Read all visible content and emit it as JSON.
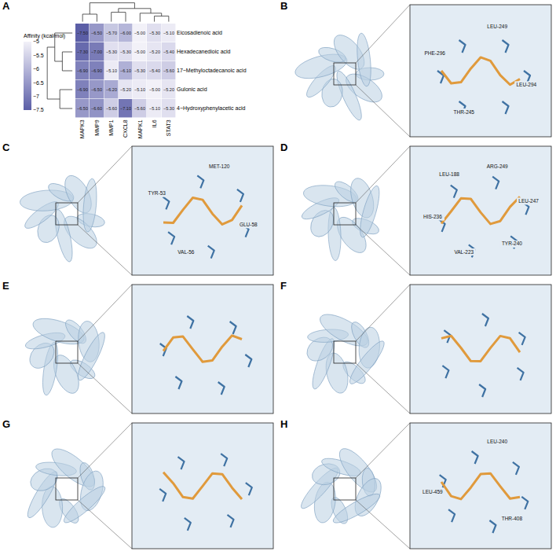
{
  "chart_data": {
    "type": "heatmap",
    "panel": "A",
    "columns": [
      "MAPK3",
      "MMP9",
      "MMP1",
      "CXCL8",
      "MAPK1",
      "IL6",
      "STAT3"
    ],
    "rows": [
      "Eicosadienoic acid",
      "Hexadecanedioic acid",
      "17−Methyloctadecanoic acid",
      "Gulonic acid",
      "4−Hydroxyphenylacetic acid"
    ],
    "values": [
      [
        -7.5,
        -6.5,
        -5.7,
        -6.0,
        -5.0,
        -5.3,
        -5.1
      ],
      [
        -7.3,
        -7.0,
        -5.3,
        -5.3,
        -5.0,
        -5.2,
        -5.4
      ],
      [
        -6.9,
        -6.9,
        -5.1,
        -6.1,
        -5.3,
        -5.4,
        -5.6
      ],
      [
        -6.9,
        -6.5,
        -6.2,
        -5.2,
        -5.1,
        -5.0,
        -5.2
      ],
      [
        -6.5,
        -6.6,
        -5.6,
        -7.1,
        -5.6,
        -5.1,
        -5.3
      ]
    ],
    "value_labels": [
      [
        "−7.50",
        "−6.50",
        "−5.70",
        "−6.00",
        "−5.00",
        "−5.30",
        "−5.10"
      ],
      [
        "−7.30",
        "−7.00",
        "−5.30",
        "−5.30",
        "−5.00",
        "−5.20",
        "−5.40"
      ],
      [
        "−6.90",
        "−6.90",
        "−5.10",
        "−6.10",
        "−5.30",
        "−5.40",
        "−5.60"
      ],
      [
        "−6.90",
        "−6.50",
        "−6.20",
        "−5.20",
        "−5.10",
        "−5.00",
        "−5.20"
      ],
      [
        "−6.50",
        "−6.60",
        "−5.60",
        "−7.10",
        "−5.60",
        "−5.10",
        "−5.30"
      ]
    ],
    "colorbar": {
      "title": "Affinity (kcal/mol)",
      "zlim": [
        -7.5,
        -5
      ],
      "zticks": [
        -5,
        -5.5,
        -6,
        -6.5,
        -7,
        -7.5
      ]
    }
  },
  "panels": [
    {
      "label": "B",
      "residues": [
        "LEU-249",
        "LEU-294",
        "THR-245",
        "PHE-296"
      ]
    },
    {
      "label": "C",
      "residues": [
        "MET-120",
        "GLU-58",
        "VAL-56",
        "TYR-53"
      ]
    },
    {
      "label": "D",
      "residues": [
        "ARG-249",
        "LEU-247",
        "TYR-240",
        "VAL-223",
        "HIS-236",
        "LEU-188"
      ]
    },
    {
      "label": "E",
      "residues": []
    },
    {
      "label": "F",
      "residues": []
    },
    {
      "label": "G",
      "residues": []
    },
    {
      "label": "H",
      "residues": [
        "LEU-240",
        "THR-408",
        "LEU-459"
      ]
    }
  ]
}
